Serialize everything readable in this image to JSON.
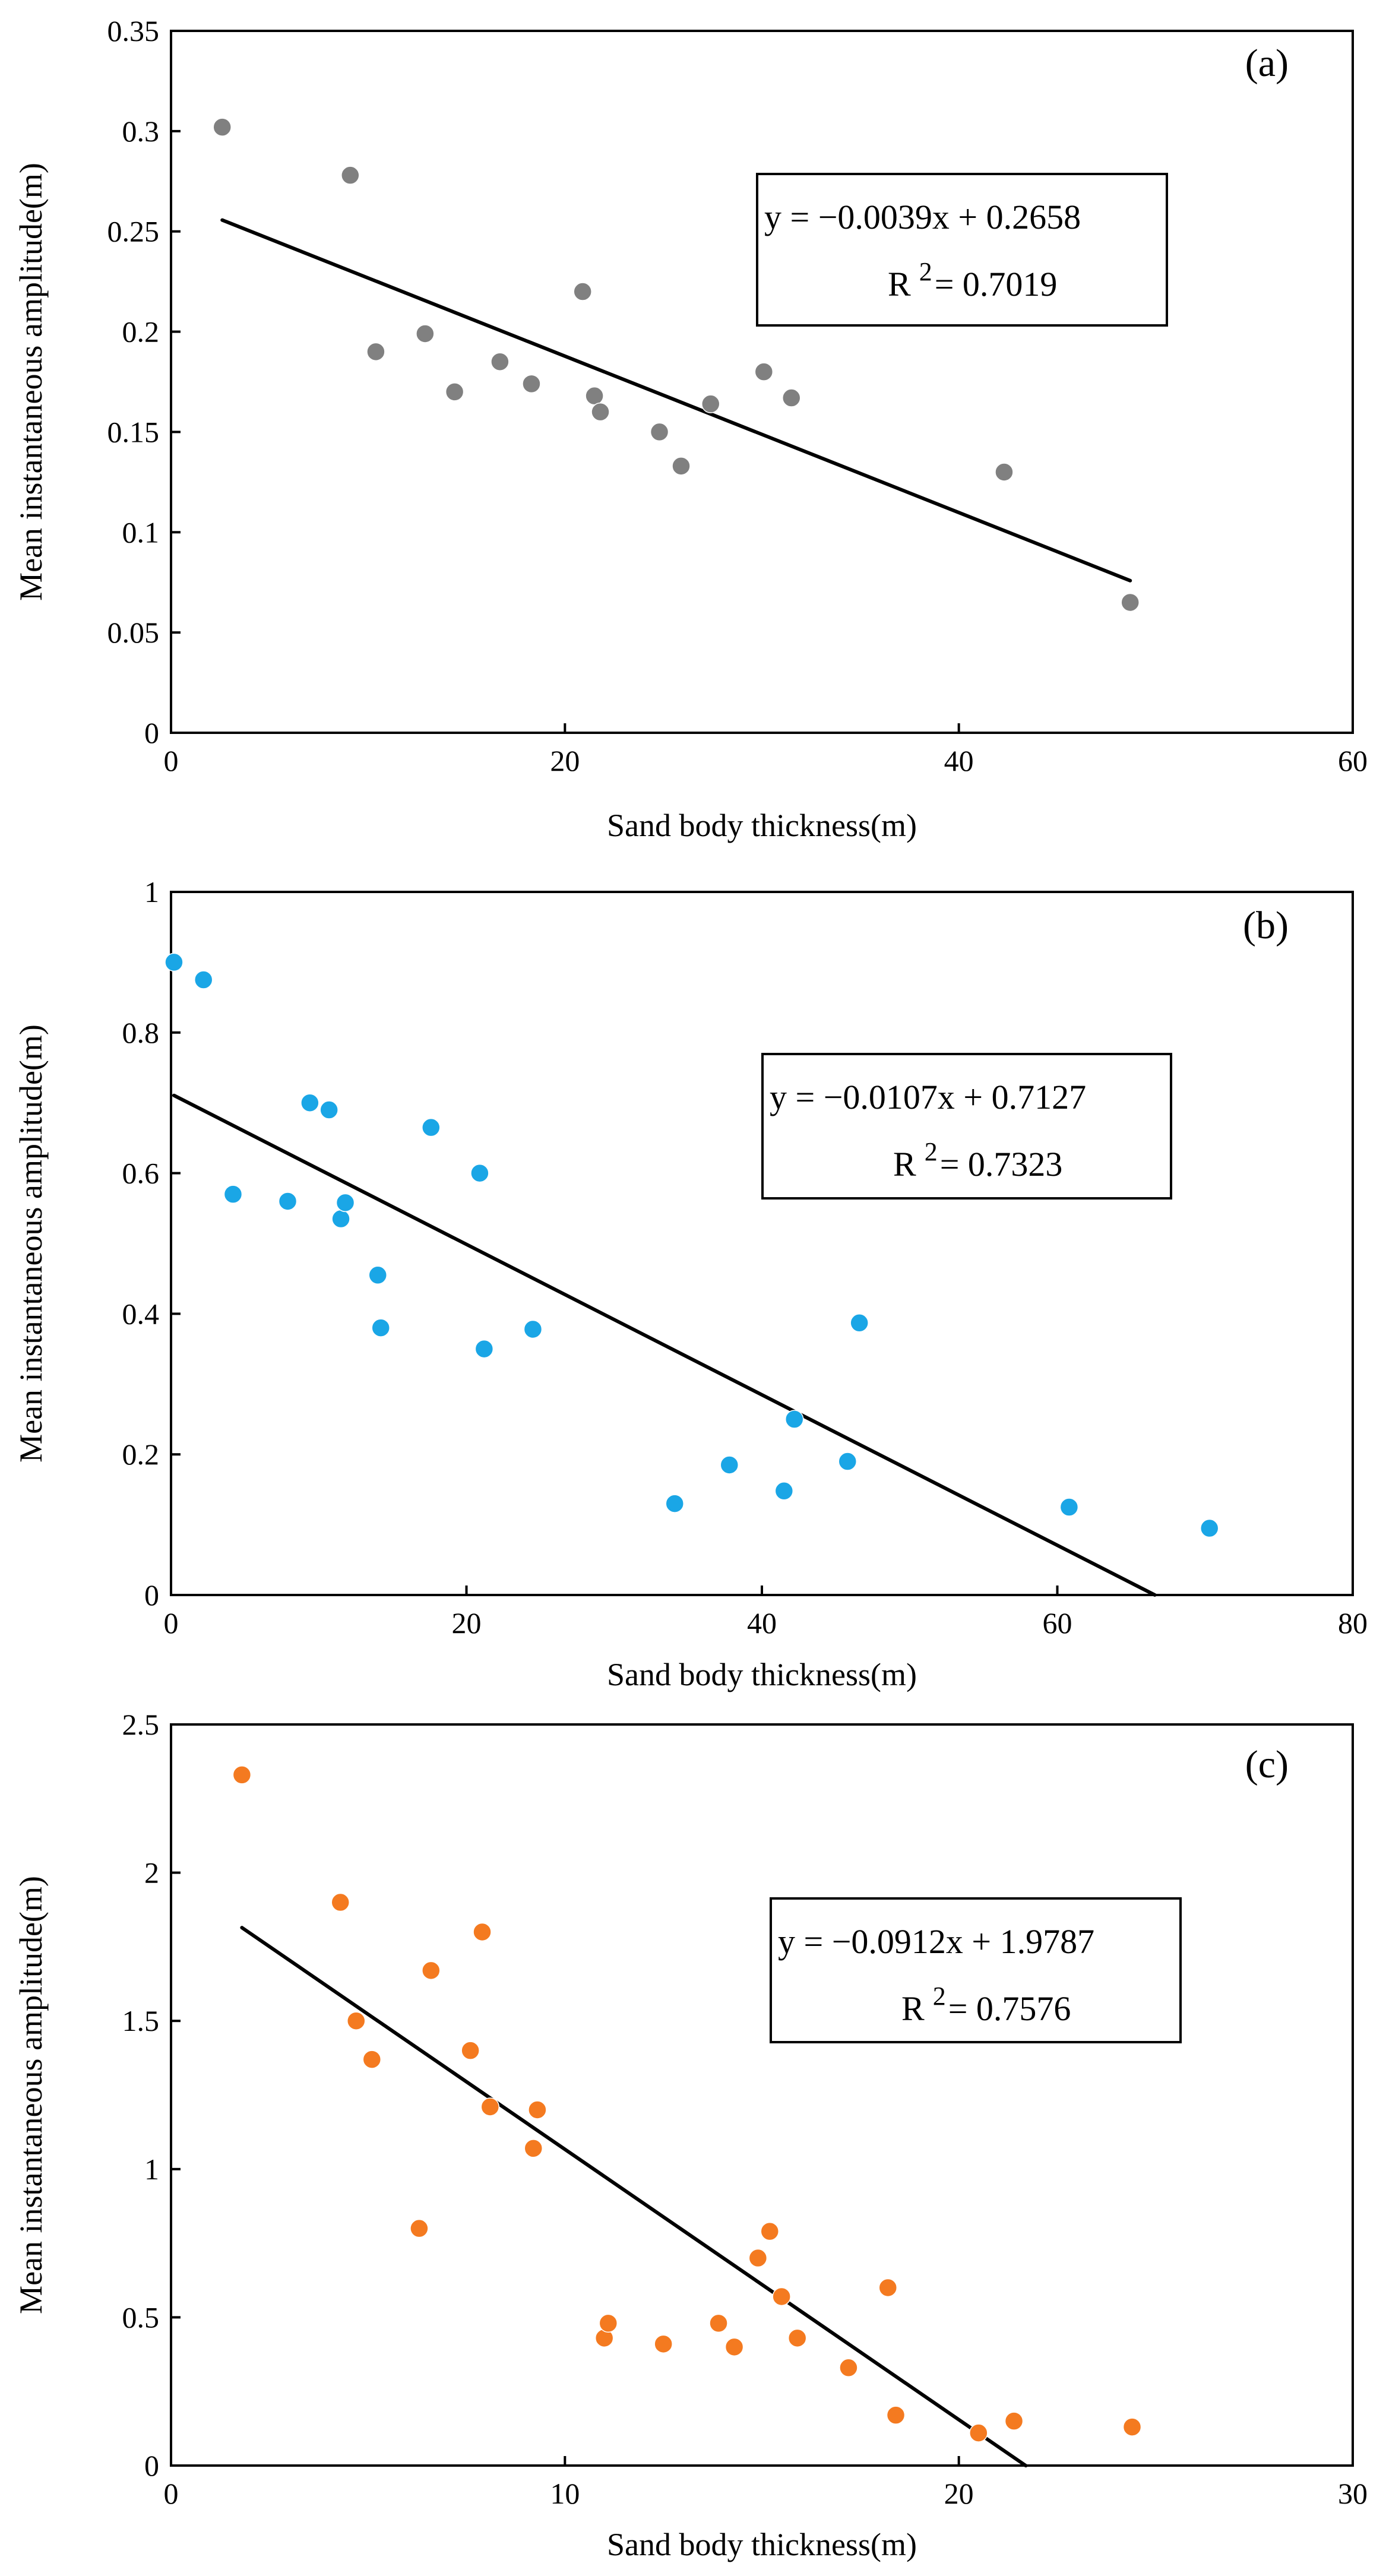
{
  "chart_data": [
    {
      "type": "scatter",
      "panel_label": "(a)",
      "xlabel": "Sand body  thickness(m)",
      "ylabel": "Mean instantaneous amplitude(m)",
      "xlim": [
        0,
        60
      ],
      "ylim": [
        0,
        0.35
      ],
      "xticks": [
        0,
        20,
        40,
        60
      ],
      "yticks": [
        0,
        0.05,
        0.1,
        0.15,
        0.2,
        0.25,
        0.3,
        0.35
      ],
      "xtick_labels": [
        "0",
        "20",
        "40",
        "60"
      ],
      "ytick_labels": [
        "0",
        "0.05",
        "0.1",
        "0.15",
        "0.2",
        "0.25",
        "0.3",
        "0.35"
      ],
      "grid": false,
      "marker_color": "#808080",
      "points": [
        {
          "x": 2.6,
          "y": 0.302
        },
        {
          "x": 9.1,
          "y": 0.278
        },
        {
          "x": 10.4,
          "y": 0.19
        },
        {
          "x": 12.9,
          "y": 0.199
        },
        {
          "x": 14.4,
          "y": 0.17
        },
        {
          "x": 16.7,
          "y": 0.185
        },
        {
          "x": 18.3,
          "y": 0.174
        },
        {
          "x": 20.9,
          "y": 0.22
        },
        {
          "x": 21.5,
          "y": 0.168
        },
        {
          "x": 21.8,
          "y": 0.16
        },
        {
          "x": 24.8,
          "y": 0.15
        },
        {
          "x": 25.9,
          "y": 0.133
        },
        {
          "x": 27.4,
          "y": 0.164
        },
        {
          "x": 30.1,
          "y": 0.18
        },
        {
          "x": 31.5,
          "y": 0.167
        },
        {
          "x": 42.3,
          "y": 0.13
        },
        {
          "x": 48.7,
          "y": 0.065
        }
      ],
      "fit": {
        "slope": -0.0039,
        "intercept": 0.2658,
        "x_start": 2.6,
        "x_end": 48.7
      },
      "equation_text": "y = −0.0039x + 0.2658",
      "r2_prefix": "R",
      "r2_sup": "2",
      "r2_value_text": "= 0.7019"
    },
    {
      "type": "scatter",
      "panel_label": "(b)",
      "xlabel": "Sand body  thickness(m)",
      "ylabel": "Mean instantaneous amplitude(m)",
      "xlim": [
        0,
        80
      ],
      "ylim": [
        0,
        1
      ],
      "xticks": [
        0,
        20,
        40,
        60,
        80
      ],
      "yticks": [
        0,
        0.2,
        0.4,
        0.6,
        0.8,
        1
      ],
      "xtick_labels": [
        "0",
        "20",
        "40",
        "60",
        "80"
      ],
      "ytick_labels": [
        "0",
        "0.2",
        "0.4",
        "0.6",
        "0.8",
        "1"
      ],
      "grid": false,
      "marker_color": "#1aa6e6",
      "points": [
        {
          "x": 0.2,
          "y": 0.9
        },
        {
          "x": 2.2,
          "y": 0.875
        },
        {
          "x": 4.2,
          "y": 0.57
        },
        {
          "x": 7.9,
          "y": 0.56
        },
        {
          "x": 9.4,
          "y": 0.7
        },
        {
          "x": 10.7,
          "y": 0.69
        },
        {
          "x": 11.5,
          "y": 0.535
        },
        {
          "x": 11.8,
          "y": 0.558
        },
        {
          "x": 14.0,
          "y": 0.455
        },
        {
          "x": 14.2,
          "y": 0.38
        },
        {
          "x": 17.6,
          "y": 0.665
        },
        {
          "x": 20.9,
          "y": 0.6
        },
        {
          "x": 21.2,
          "y": 0.35
        },
        {
          "x": 24.5,
          "y": 0.378
        },
        {
          "x": 34.1,
          "y": 0.13
        },
        {
          "x": 37.8,
          "y": 0.185
        },
        {
          "x": 41.5,
          "y": 0.148
        },
        {
          "x": 42.2,
          "y": 0.25
        },
        {
          "x": 45.8,
          "y": 0.19
        },
        {
          "x": 46.6,
          "y": 0.387
        },
        {
          "x": 60.8,
          "y": 0.125
        },
        {
          "x": 70.3,
          "y": 0.095
        }
      ],
      "fit": {
        "slope": -0.0107,
        "intercept": 0.7127,
        "x_start": 0.2,
        "x_end": 66.6
      },
      "equation_text": "y = −0.0107x + 0.7127",
      "r2_prefix": "R",
      "r2_sup": "2",
      "r2_value_text": "= 0.7323"
    },
    {
      "type": "scatter",
      "panel_label": "(c)",
      "xlabel": "Sand body  thickness(m)",
      "ylabel": "Mean instantaneous amplitude(m)",
      "xlim": [
        0,
        30
      ],
      "ylim": [
        0,
        2.5
      ],
      "xticks": [
        0,
        10,
        20,
        30
      ],
      "yticks": [
        0,
        0.5,
        1,
        1.5,
        2,
        2.5
      ],
      "xtick_labels": [
        "0",
        "10",
        "20",
        "30"
      ],
      "ytick_labels": [
        "0",
        "0.5",
        "1",
        "1.5",
        "2",
        "2.5"
      ],
      "grid": false,
      "marker_color": "#f47a20",
      "points": [
        {
          "x": 1.8,
          "y": 2.33
        },
        {
          "x": 4.3,
          "y": 1.9
        },
        {
          "x": 4.7,
          "y": 1.5
        },
        {
          "x": 5.1,
          "y": 1.37
        },
        {
          "x": 6.3,
          "y": 0.8
        },
        {
          "x": 6.6,
          "y": 1.67
        },
        {
          "x": 7.6,
          "y": 1.4
        },
        {
          "x": 7.9,
          "y": 1.8
        },
        {
          "x": 8.1,
          "y": 1.21
        },
        {
          "x": 9.2,
          "y": 1.07
        },
        {
          "x": 9.3,
          "y": 1.2
        },
        {
          "x": 11.0,
          "y": 0.43
        },
        {
          "x": 11.1,
          "y": 0.48
        },
        {
          "x": 12.5,
          "y": 0.41
        },
        {
          "x": 13.9,
          "y": 0.48
        },
        {
          "x": 14.3,
          "y": 0.4
        },
        {
          "x": 14.9,
          "y": 0.7
        },
        {
          "x": 15.2,
          "y": 0.79
        },
        {
          "x": 15.5,
          "y": 0.57
        },
        {
          "x": 15.9,
          "y": 0.43
        },
        {
          "x": 17.2,
          "y": 0.33
        },
        {
          "x": 18.2,
          "y": 0.6
        },
        {
          "x": 18.4,
          "y": 0.17
        },
        {
          "x": 20.5,
          "y": 0.11
        },
        {
          "x": 21.4,
          "y": 0.15
        },
        {
          "x": 24.4,
          "y": 0.13
        }
      ],
      "fit": {
        "slope": -0.0912,
        "intercept": 1.9787,
        "x_start": 1.8,
        "x_end": 21.7
      },
      "equation_text": "y = −0.0912x + 1.9787",
      "r2_prefix": "R",
      "r2_sup": "2",
      "r2_value_text": "= 0.7576"
    }
  ]
}
